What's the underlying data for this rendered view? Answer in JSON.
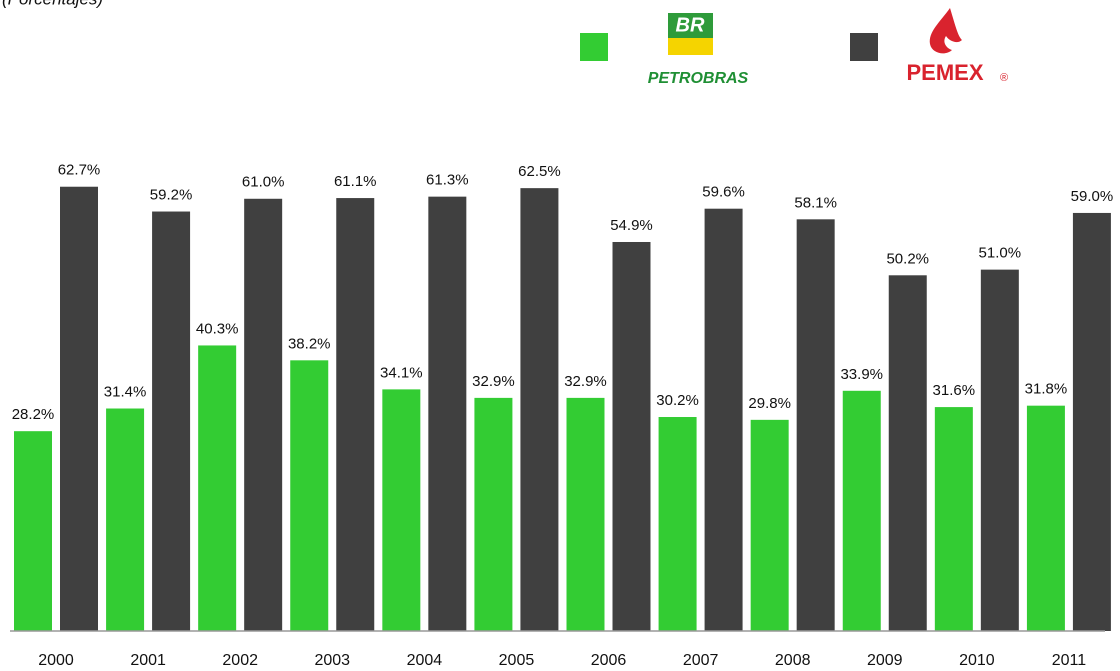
{
  "chart_data": {
    "type": "bar",
    "subtitle": "(Porcentajes)",
    "categories": [
      "2000",
      "2001",
      "2002",
      "2003",
      "2004",
      "2005",
      "2006",
      "2007",
      "2008",
      "2009",
      "2010",
      "2011"
    ],
    "series": [
      {
        "name": "PETROBRAS",
        "logo": "BR",
        "color": "#33cc33",
        "values": [
          28.2,
          31.4,
          40.3,
          38.2,
          34.1,
          32.9,
          32.9,
          30.2,
          29.8,
          33.9,
          31.6,
          31.8
        ],
        "value_labels": [
          "28.2%",
          "31.4%",
          "40.3%",
          "38.2%",
          "34.1%",
          "32.9%",
          "32.9%",
          "30.2%",
          "29.8%",
          "33.9%",
          "31.6%",
          "31.8%"
        ]
      },
      {
        "name": "PEMEX",
        "logo": "®",
        "color": "#404040",
        "values": [
          62.7,
          59.2,
          61.0,
          61.1,
          61.3,
          62.5,
          54.9,
          59.6,
          58.1,
          50.2,
          51.0,
          59.0
        ],
        "value_labels": [
          "62.7%",
          "59.2%",
          "61.0%",
          "61.1%",
          "61.3%",
          "62.5%",
          "54.9%",
          "59.6%",
          "58.1%",
          "50.2%",
          "51.0%",
          "59.0%"
        ]
      }
    ],
    "ylim": [
      0,
      70
    ]
  }
}
